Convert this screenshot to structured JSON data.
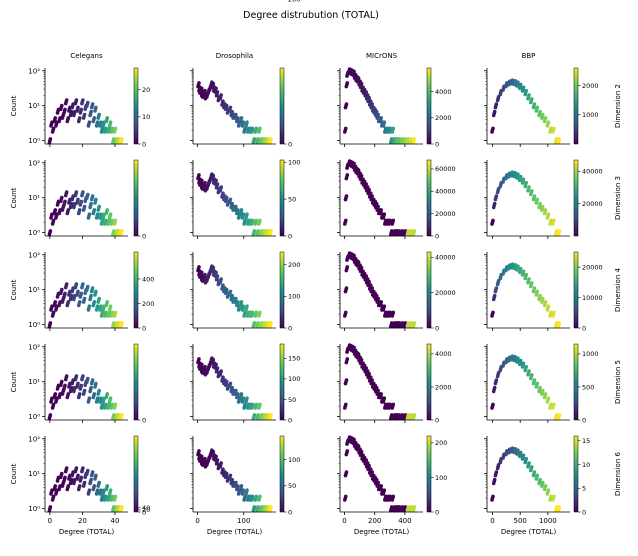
{
  "title": "Degree distrubution (TOTAL)",
  "columns": [
    "Celegans",
    "Drosophila",
    "MICrONS",
    "BBP"
  ],
  "rows": [
    "Dimension 2",
    "Dimension 3",
    "Dimension 4",
    "Dimension 5",
    "Dimension 6"
  ],
  "xlabel": "Degree (TOTAL)",
  "ylabel": "Count",
  "y_ticks": [
    "10⁰",
    "10¹",
    "10²"
  ],
  "x_ticks": [
    [
      "0",
      "20",
      "40"
    ],
    [
      "0",
      "100"
    ],
    [
      "0",
      "200",
      "400"
    ],
    [
      "0",
      "500",
      "1000"
    ]
  ],
  "colormap": [
    "#440154",
    "#3b528b",
    "#21918c",
    "#5ec962",
    "#fde725"
  ],
  "chart_data": {
    "type": "scatter",
    "yscale": "log",
    "xlim": [
      [
        -3,
        48
      ],
      [
        -10,
        170
      ],
      [
        -30,
        520
      ],
      [
        -100,
        1400
      ]
    ],
    "ylim": [
      0.8,
      120
    ],
    "colorbar_ticks": [
      [
        [
          "0",
          "10",
          "20"
        ],
        [
          "0",
          "2000",
          "4000"
        ],
        [
          "0",
          "200",
          "400"
        ],
        [
          "0",
          "20000",
          "40000"
        ],
        [
          "0",
          "20",
          "40"
        ]
      ],
      [
        [
          "0",
          "200",
          "400"
        ],
        [
          "0",
          "50",
          "100"
        ],
        [
          "0",
          "100",
          "200"
        ],
        [
          "0",
          "50",
          "100",
          "150"
        ],
        [
          "0",
          "50",
          "100"
        ]
      ],
      [
        [
          "0",
          "2000",
          "4000"
        ],
        [
          "0",
          "20000",
          "40000",
          "60000"
        ],
        [
          "0",
          "20000",
          "40000"
        ],
        [
          "0",
          "2000",
          "4000"
        ],
        [
          "0",
          "100",
          "200"
        ]
      ],
      [
        [
          "1000",
          "2000"
        ],
        [
          "20000",
          "40000"
        ],
        [
          "0",
          "10000",
          "20000"
        ],
        [
          "0",
          "500",
          "1000"
        ],
        [
          "0",
          "5",
          "10",
          "15"
        ]
      ]
    ],
    "colorbar_max": [
      [
        28,
        480,
        620,
        1800,
        720
      ],
      [
        105,
        103,
        240,
        185,
        145
      ],
      [
        5800,
        68000,
        43000,
        4600,
        220
      ],
      [
        2600,
        47000,
        25000,
        1150,
        16
      ]
    ],
    "series": [
      {
        "name": "Celegans",
        "points": [
          [
            0,
            1
          ],
          [
            1,
            3
          ],
          [
            2,
            2
          ],
          [
            3,
            4
          ],
          [
            4,
            3
          ],
          [
            5,
            7
          ],
          [
            6,
            4
          ],
          [
            7,
            9
          ],
          [
            8,
            5
          ],
          [
            9,
            7
          ],
          [
            10,
            13
          ],
          [
            11,
            4
          ],
          [
            12,
            8
          ],
          [
            13,
            6
          ],
          [
            14,
            10
          ],
          [
            15,
            6
          ],
          [
            16,
            13
          ],
          [
            17,
            8
          ],
          [
            18,
            4
          ],
          [
            19,
            7
          ],
          [
            20,
            13
          ],
          [
            21,
            5
          ],
          [
            22,
            9
          ],
          [
            23,
            11
          ],
          [
            24,
            3
          ],
          [
            25,
            6
          ],
          [
            26,
            10
          ],
          [
            27,
            4
          ],
          [
            28,
            8
          ],
          [
            29,
            3
          ],
          [
            30,
            5
          ],
          [
            31,
            3
          ],
          [
            32,
            2
          ],
          [
            33,
            3
          ],
          [
            34,
            2
          ],
          [
            35,
            4
          ],
          [
            36,
            2
          ],
          [
            37,
            3
          ],
          [
            38,
            2
          ],
          [
            39,
            1
          ],
          [
            40,
            2
          ],
          [
            41,
            1
          ],
          [
            42,
            1
          ],
          [
            43,
            1
          ],
          [
            44,
            1
          ]
        ]
      },
      {
        "name": "Drosophila",
        "points": [
          [
            2,
            40
          ],
          [
            4,
            30
          ],
          [
            6,
            26
          ],
          [
            8,
            28
          ],
          [
            10,
            22
          ],
          [
            12,
            20
          ],
          [
            15,
            24
          ],
          [
            18,
            18
          ],
          [
            21,
            20
          ],
          [
            24,
            26
          ],
          [
            27,
            32
          ],
          [
            30,
            42
          ],
          [
            33,
            38
          ],
          [
            36,
            30
          ],
          [
            39,
            28
          ],
          [
            42,
            22
          ],
          [
            46,
            16
          ],
          [
            50,
            18
          ],
          [
            54,
            12
          ],
          [
            58,
            10
          ],
          [
            62,
            9
          ],
          [
            66,
            7
          ],
          [
            70,
            8
          ],
          [
            74,
            6
          ],
          [
            78,
            5
          ],
          [
            82,
            5
          ],
          [
            86,
            4
          ],
          [
            90,
            3
          ],
          [
            94,
            4
          ],
          [
            98,
            3
          ],
          [
            102,
            2
          ],
          [
            106,
            3
          ],
          [
            110,
            2
          ],
          [
            114,
            2
          ],
          [
            118,
            2
          ],
          [
            122,
            1
          ],
          [
            126,
            2
          ],
          [
            130,
            1
          ],
          [
            134,
            2
          ],
          [
            138,
            1
          ],
          [
            142,
            1
          ],
          [
            146,
            1
          ],
          [
            150,
            1
          ],
          [
            154,
            1
          ],
          [
            158,
            1
          ]
        ]
      },
      {
        "name": "MICrONS",
        "points": [
          [
            5,
            2
          ],
          [
            10,
            10
          ],
          [
            15,
            40
          ],
          [
            20,
            80
          ],
          [
            30,
            100
          ],
          [
            40,
            95
          ],
          [
            50,
            90
          ],
          [
            60,
            85
          ],
          [
            70,
            70
          ],
          [
            80,
            60
          ],
          [
            90,
            55
          ],
          [
            100,
            45
          ],
          [
            110,
            38
          ],
          [
            120,
            30
          ],
          [
            130,
            26
          ],
          [
            140,
            22
          ],
          [
            150,
            18
          ],
          [
            160,
            15
          ],
          [
            170,
            12
          ],
          [
            180,
            10
          ],
          [
            190,
            8
          ],
          [
            200,
            7
          ],
          [
            210,
            6
          ],
          [
            220,
            5
          ],
          [
            230,
            4
          ],
          [
            240,
            4
          ],
          [
            250,
            3
          ],
          [
            260,
            3
          ],
          [
            270,
            2
          ],
          [
            280,
            2
          ],
          [
            290,
            2
          ],
          [
            300,
            2
          ],
          [
            310,
            1
          ],
          [
            320,
            2
          ],
          [
            330,
            1
          ],
          [
            340,
            1
          ],
          [
            350,
            1
          ],
          [
            360,
            1
          ],
          [
            380,
            1
          ],
          [
            400,
            1
          ],
          [
            420,
            1
          ],
          [
            440,
            1
          ],
          [
            460,
            1
          ]
        ]
      },
      {
        "name": "BBP",
        "points": [
          [
            0,
            2
          ],
          [
            30,
            6
          ],
          [
            60,
            10
          ],
          [
            100,
            16
          ],
          [
            150,
            24
          ],
          [
            200,
            32
          ],
          [
            250,
            40
          ],
          [
            300,
            45
          ],
          [
            350,
            48
          ],
          [
            400,
            46
          ],
          [
            450,
            42
          ],
          [
            500,
            36
          ],
          [
            550,
            30
          ],
          [
            600,
            24
          ],
          [
            650,
            18
          ],
          [
            700,
            14
          ],
          [
            750,
            10
          ],
          [
            800,
            8
          ],
          [
            850,
            6
          ],
          [
            900,
            5
          ],
          [
            950,
            4
          ],
          [
            1000,
            3
          ],
          [
            1050,
            2
          ],
          [
            1100,
            2
          ],
          [
            1150,
            1
          ],
          [
            1200,
            1
          ]
        ]
      }
    ]
  }
}
